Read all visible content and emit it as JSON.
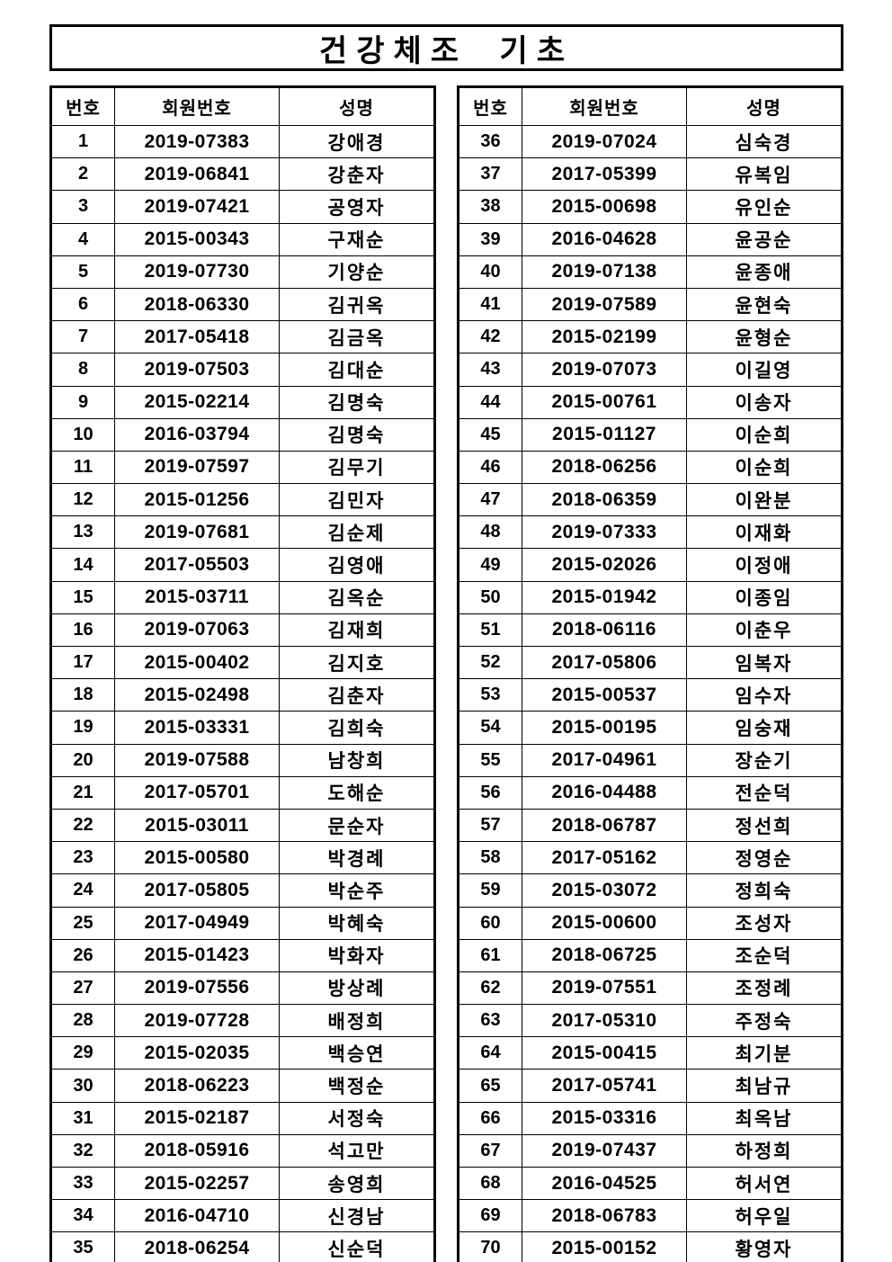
{
  "title": "건강체조 기초",
  "columns": [
    "번호",
    "회원번호",
    "성명"
  ],
  "colors": {
    "text": "#000000",
    "border": "#000000",
    "background": "#ffffff"
  },
  "tables": [
    {
      "rows": [
        [
          "1",
          "2019-07383",
          "강애경"
        ],
        [
          "2",
          "2019-06841",
          "강춘자"
        ],
        [
          "3",
          "2019-07421",
          "공영자"
        ],
        [
          "4",
          "2015-00343",
          "구재순"
        ],
        [
          "5",
          "2019-07730",
          "기양순"
        ],
        [
          "6",
          "2018-06330",
          "김귀옥"
        ],
        [
          "7",
          "2017-05418",
          "김금옥"
        ],
        [
          "8",
          "2019-07503",
          "김대순"
        ],
        [
          "9",
          "2015-02214",
          "김명숙"
        ],
        [
          "10",
          "2016-03794",
          "김명숙"
        ],
        [
          "11",
          "2019-07597",
          "김무기"
        ],
        [
          "12",
          "2015-01256",
          "김민자"
        ],
        [
          "13",
          "2019-07681",
          "김순제"
        ],
        [
          "14",
          "2017-05503",
          "김영애"
        ],
        [
          "15",
          "2015-03711",
          "김옥순"
        ],
        [
          "16",
          "2019-07063",
          "김재희"
        ],
        [
          "17",
          "2015-00402",
          "김지호"
        ],
        [
          "18",
          "2015-02498",
          "김춘자"
        ],
        [
          "19",
          "2015-03331",
          "김희숙"
        ],
        [
          "20",
          "2019-07588",
          "남창희"
        ],
        [
          "21",
          "2017-05701",
          "도해순"
        ],
        [
          "22",
          "2015-03011",
          "문순자"
        ],
        [
          "23",
          "2015-00580",
          "박경례"
        ],
        [
          "24",
          "2017-05805",
          "박순주"
        ],
        [
          "25",
          "2017-04949",
          "박혜숙"
        ],
        [
          "26",
          "2015-01423",
          "박화자"
        ],
        [
          "27",
          "2019-07556",
          "방상례"
        ],
        [
          "28",
          "2019-07728",
          "배정희"
        ],
        [
          "29",
          "2015-02035",
          "백승연"
        ],
        [
          "30",
          "2018-06223",
          "백정순"
        ],
        [
          "31",
          "2015-02187",
          "서정숙"
        ],
        [
          "32",
          "2018-05916",
          "석고만"
        ],
        [
          "33",
          "2015-02257",
          "송영희"
        ],
        [
          "34",
          "2016-04710",
          "신경남"
        ],
        [
          "35",
          "2018-06254",
          "신순덕"
        ]
      ]
    },
    {
      "rows": [
        [
          "36",
          "2019-07024",
          "심숙경"
        ],
        [
          "37",
          "2017-05399",
          "유복임"
        ],
        [
          "38",
          "2015-00698",
          "유인순"
        ],
        [
          "39",
          "2016-04628",
          "윤공순"
        ],
        [
          "40",
          "2019-07138",
          "윤종애"
        ],
        [
          "41",
          "2019-07589",
          "윤현숙"
        ],
        [
          "42",
          "2015-02199",
          "윤형순"
        ],
        [
          "43",
          "2019-07073",
          "이길영"
        ],
        [
          "44",
          "2015-00761",
          "이송자"
        ],
        [
          "45",
          "2015-01127",
          "이순희"
        ],
        [
          "46",
          "2018-06256",
          "이순희"
        ],
        [
          "47",
          "2018-06359",
          "이완분"
        ],
        [
          "48",
          "2019-07333",
          "이재화"
        ],
        [
          "49",
          "2015-02026",
          "이정애"
        ],
        [
          "50",
          "2015-01942",
          "이종임"
        ],
        [
          "51",
          "2018-06116",
          "이춘우"
        ],
        [
          "52",
          "2017-05806",
          "임복자"
        ],
        [
          "53",
          "2015-00537",
          "임수자"
        ],
        [
          "54",
          "2015-00195",
          "임숭재"
        ],
        [
          "55",
          "2017-04961",
          "장순기"
        ],
        [
          "56",
          "2016-04488",
          "전순덕"
        ],
        [
          "57",
          "2018-06787",
          "정선희"
        ],
        [
          "58",
          "2017-05162",
          "정영순"
        ],
        [
          "59",
          "2015-03072",
          "정희숙"
        ],
        [
          "60",
          "2015-00600",
          "조성자"
        ],
        [
          "61",
          "2018-06725",
          "조순덕"
        ],
        [
          "62",
          "2019-07551",
          "조정례"
        ],
        [
          "63",
          "2017-05310",
          "주정숙"
        ],
        [
          "64",
          "2015-00415",
          "최기분"
        ],
        [
          "65",
          "2017-05741",
          "최남규"
        ],
        [
          "66",
          "2015-03316",
          "최옥남"
        ],
        [
          "67",
          "2019-07437",
          "하정희"
        ],
        [
          "68",
          "2016-04525",
          "허서연"
        ],
        [
          "69",
          "2018-06783",
          "허우일"
        ],
        [
          "70",
          "2015-00152",
          "황영자"
        ]
      ]
    }
  ]
}
